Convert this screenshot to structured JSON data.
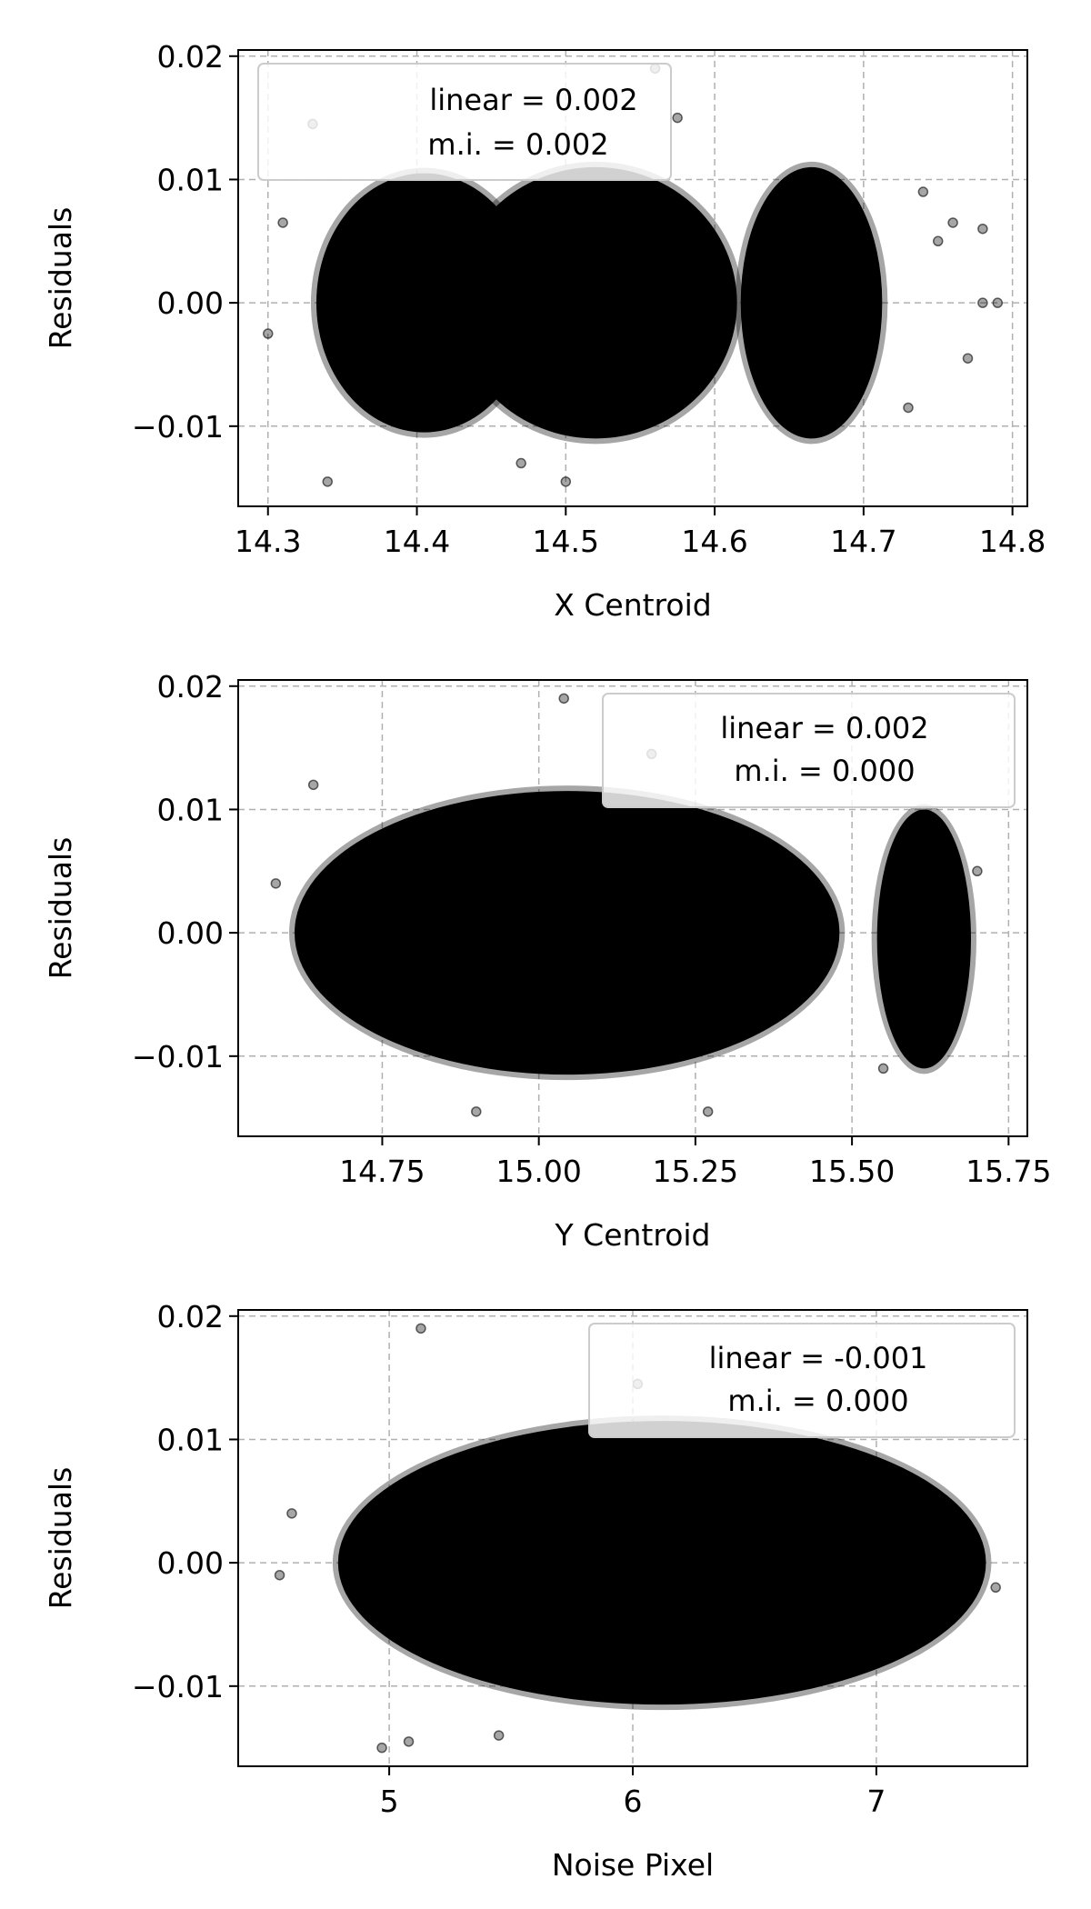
{
  "style": {
    "marker_color": "#000000",
    "grid_color": "#b0b0b0",
    "legend_face": "#ffffff",
    "legend_edge": "#cccccc"
  },
  "chart_data": [
    {
      "type": "scatter",
      "xlabel": "X Centroid",
      "ylabel": "Residuals",
      "xlim": [
        14.28,
        14.81
      ],
      "ylim": [
        -0.0165,
        0.0205
      ],
      "xticks": [
        14.3,
        14.4,
        14.5,
        14.6,
        14.7,
        14.8
      ],
      "xtick_labels": [
        "14.3",
        "14.4",
        "14.5",
        "14.6",
        "14.7",
        "14.8"
      ],
      "yticks": [
        -0.01,
        0.0,
        0.01,
        0.02
      ],
      "ytick_labels": [
        "−0.01",
        "0.00",
        "0.01",
        "0.02"
      ],
      "grid": true,
      "legend": {
        "position": "upper-left",
        "lines": [
          "linear = 0.002",
          "m.i. = 0.002"
        ]
      },
      "clusters": [
        {
          "x_center": 14.405,
          "x_width": 0.145,
          "y_center": 0.0,
          "y_width": 0.021
        },
        {
          "x_center": 14.52,
          "x_width": 0.19,
          "y_center": 0.0,
          "y_width": 0.022
        },
        {
          "x_center": 14.665,
          "x_width": 0.095,
          "y_center": 0.0,
          "y_width": 0.022
        }
      ],
      "points": [
        [
          14.33,
          0.0145
        ],
        [
          14.3,
          -0.0025
        ],
        [
          14.31,
          0.0065
        ],
        [
          14.34,
          -0.0145
        ],
        [
          14.78,
          0.0
        ],
        [
          14.79,
          0.0
        ],
        [
          14.77,
          -0.0045
        ],
        [
          14.76,
          0.0065
        ],
        [
          14.56,
          0.019
        ],
        [
          14.575,
          0.015
        ],
        [
          14.73,
          -0.0085
        ],
        [
          14.75,
          0.005
        ],
        [
          14.5,
          -0.0145
        ],
        [
          14.47,
          -0.013
        ],
        [
          14.78,
          0.006
        ],
        [
          14.74,
          0.009
        ]
      ]
    },
    {
      "type": "scatter",
      "xlabel": "Y Centroid",
      "ylabel": "Residuals",
      "xlim": [
        14.52,
        15.78
      ],
      "ylim": [
        -0.0165,
        0.0205
      ],
      "xticks": [
        14.75,
        15.0,
        15.25,
        15.5,
        15.75
      ],
      "xtick_labels": [
        "14.75",
        "15.00",
        "15.25",
        "15.50",
        "15.75"
      ],
      "yticks": [
        -0.01,
        0.0,
        0.01,
        0.02
      ],
      "ytick_labels": [
        "−0.01",
        "0.00",
        "0.01",
        "0.02"
      ],
      "grid": true,
      "legend": {
        "position": "upper-right",
        "lines": [
          "linear = 0.002",
          "m.i. = 0.000"
        ]
      },
      "clusters": [
        {
          "x_center": 15.045,
          "x_width": 0.87,
          "y_center": 0.0,
          "y_width": 0.023
        },
        {
          "x_center": 15.615,
          "x_width": 0.15,
          "y_center": -0.0005,
          "y_width": 0.021
        }
      ],
      "points": [
        [
          15.04,
          0.019
        ],
        [
          15.18,
          0.0145
        ],
        [
          14.64,
          0.012
        ],
        [
          14.58,
          0.004
        ],
        [
          14.9,
          -0.0145
        ],
        [
          15.27,
          -0.0145
        ],
        [
          15.7,
          0.005
        ],
        [
          15.55,
          -0.011
        ]
      ]
    },
    {
      "type": "scatter",
      "xlabel": "Noise Pixel",
      "ylabel": "Residuals",
      "xlim": [
        4.38,
        7.62
      ],
      "ylim": [
        -0.0165,
        0.0205
      ],
      "xticks": [
        5,
        6,
        7
      ],
      "xtick_labels": [
        "5",
        "6",
        "7"
      ],
      "yticks": [
        -0.01,
        0.0,
        0.01,
        0.02
      ],
      "ytick_labels": [
        "−0.01",
        "0.00",
        "0.01",
        "0.02"
      ],
      "grid": true,
      "legend": {
        "position": "upper-right",
        "lines": [
          "linear = -0.001",
          "m.i. = 0.000"
        ]
      },
      "clusters": [
        {
          "x_center": 6.12,
          "x_width": 2.66,
          "y_center": 0.0,
          "y_width": 0.023
        }
      ],
      "points": [
        [
          5.13,
          0.019
        ],
        [
          6.02,
          0.0145
        ],
        [
          4.55,
          -0.001
        ],
        [
          4.6,
          0.004
        ],
        [
          4.97,
          -0.015
        ],
        [
          5.08,
          -0.0145
        ],
        [
          7.49,
          -0.002
        ],
        [
          5.45,
          -0.014
        ]
      ]
    }
  ]
}
